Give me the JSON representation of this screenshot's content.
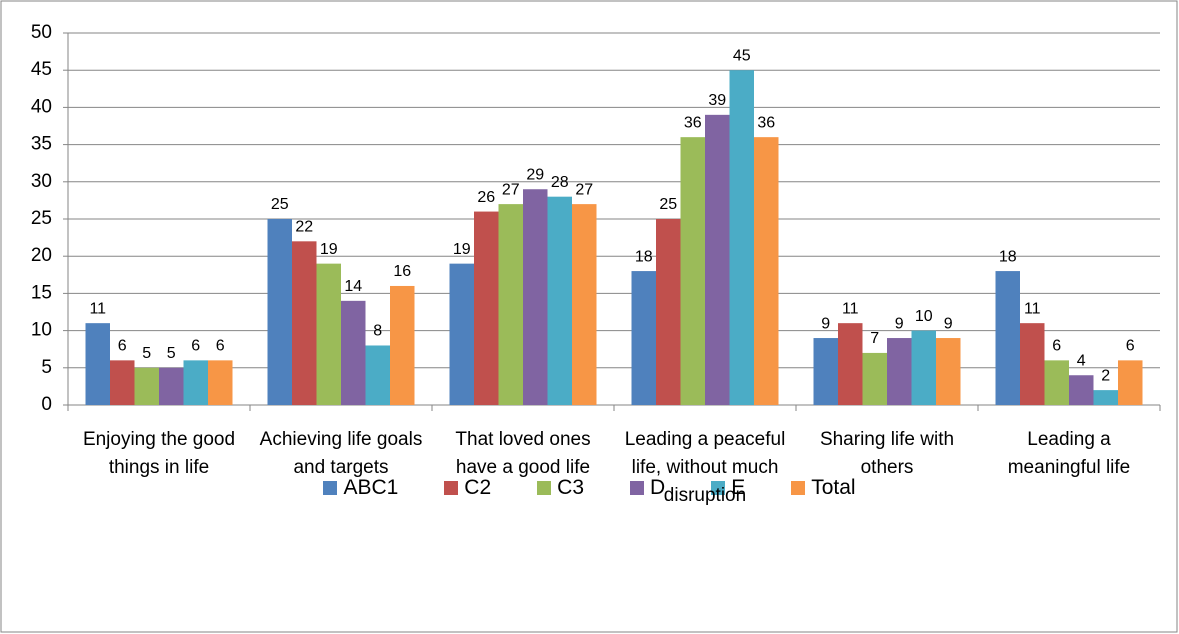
{
  "chart_data": {
    "type": "bar",
    "categories": [
      "Enjoying the good things in life",
      "Achieving life goals and targets",
      "That loved ones have a good life",
      "Leading a peaceful life, without much disruption",
      "Sharing life with others",
      "Leading a meaningful life"
    ],
    "series": [
      {
        "name": "ABC1",
        "color": "#4f81bd",
        "values": [
          11,
          25,
          19,
          18,
          9,
          18
        ]
      },
      {
        "name": "C2",
        "color": "#c0504d",
        "values": [
          6,
          22,
          26,
          25,
          11,
          11
        ]
      },
      {
        "name": "C3",
        "color": "#9bbb59",
        "values": [
          5,
          19,
          27,
          36,
          7,
          6
        ]
      },
      {
        "name": "D",
        "color": "#8064a2",
        "values": [
          5,
          14,
          29,
          39,
          9,
          4
        ]
      },
      {
        "name": "E",
        "color": "#4bacc6",
        "values": [
          6,
          8,
          28,
          45,
          10,
          2
        ]
      },
      {
        "name": "Total",
        "color": "#f79646",
        "values": [
          6,
          16,
          27,
          36,
          9,
          6
        ]
      }
    ],
    "ylim": [
      0,
      50
    ],
    "yticks": [
      0,
      5,
      10,
      15,
      20,
      25,
      30,
      35,
      40,
      45,
      50
    ],
    "grid": true,
    "legend": "bottom"
  }
}
